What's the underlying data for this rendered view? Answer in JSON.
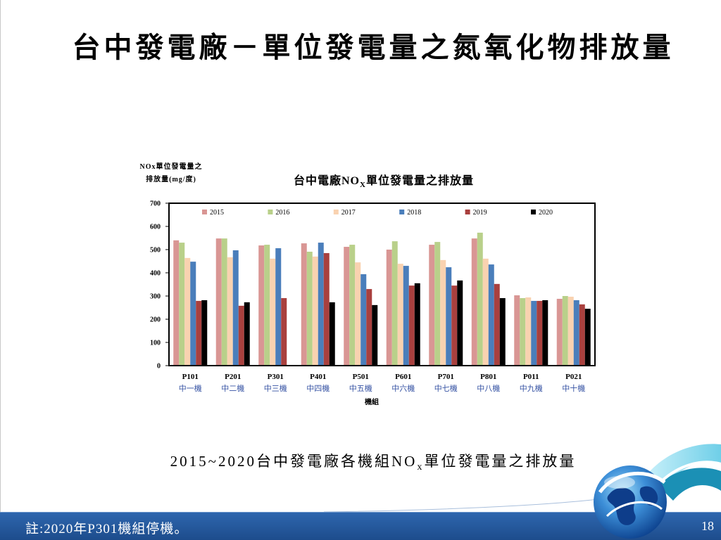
{
  "slide": {
    "title": "台中發電廠－單位發電量之氮氧化物排放量",
    "caption": {
      "pre": "2015~2020台中發電廠各機組NO",
      "sub": "x",
      "post": "單位發電量之排放量"
    },
    "note": "註:2020年P301機組停機。",
    "page_number": "18"
  },
  "logo": {
    "icon": "globe-swirl-logo-icon"
  },
  "colors": {
    "title_text": "#000000",
    "footer_bar": "#2559a0",
    "footer_text": "#ffffff",
    "logo_globe": "#1c63b8",
    "logo_ribbon": "#1b90b5"
  },
  "chart_data": {
    "type": "bar",
    "title": {
      "main": "台中電廠NO",
      "sub": "X",
      "rest": "單位發電量之排放量"
    },
    "ylabel": [
      "NOx單位發電量之",
      "排放量(mg/度)"
    ],
    "xlabel": "機組",
    "categories": [
      "P101",
      "P201",
      "P301",
      "P401",
      "P501",
      "P601",
      "P701",
      "P801",
      "P011",
      "P021"
    ],
    "category_names": [
      "中一機",
      "中二機",
      "中三機",
      "中四機",
      "中五機",
      "中六機",
      "中七機",
      "中八機",
      "中九機",
      "中十機"
    ],
    "category_name_color": "#3552a3",
    "ylim": [
      0,
      700
    ],
    "yticks": [
      0,
      100,
      200,
      300,
      400,
      500,
      600,
      700
    ],
    "grid": false,
    "legend_position": "top",
    "series": [
      {
        "name": "2015",
        "color": "#d99694",
        "values": [
          540,
          548,
          518,
          527,
          512,
          500,
          521,
          548,
          303,
          288
        ]
      },
      {
        "name": "2016",
        "color": "#b9d08a",
        "values": [
          530,
          548,
          521,
          491,
          521,
          536,
          533,
          573,
          291,
          300
        ]
      },
      {
        "name": "2017",
        "color": "#f9d2b0",
        "values": [
          464,
          467,
          461,
          470,
          445,
          439,
          455,
          461,
          294,
          297
        ]
      },
      {
        "name": "2018",
        "color": "#4a7ebb",
        "values": [
          448,
          497,
          506,
          530,
          394,
          430,
          424,
          436,
          279,
          282
        ]
      },
      {
        "name": "2019",
        "color": "#a9403e",
        "values": [
          279,
          258,
          291,
          485,
          330,
          345,
          345,
          352,
          279,
          264
        ]
      },
      {
        "name": "2020",
        "color": "#000000",
        "values": [
          282,
          273,
          null,
          273,
          261,
          355,
          367,
          291,
          282,
          245
        ]
      }
    ]
  }
}
